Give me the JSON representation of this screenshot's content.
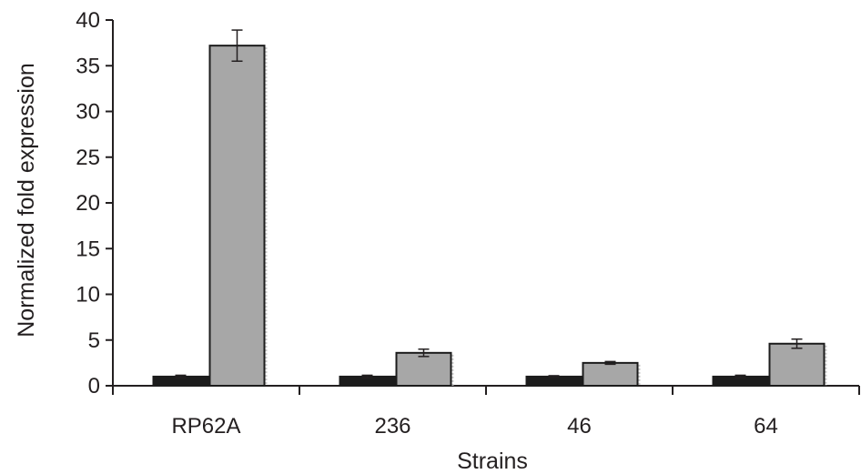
{
  "chart_data": {
    "type": "bar",
    "title": "",
    "xlabel": "Strains",
    "ylabel": "Normalized fold expression",
    "categories": [
      "RP62A",
      "236",
      "46",
      "64"
    ],
    "ylim": [
      0,
      40
    ],
    "yticks": [
      0,
      5,
      10,
      15,
      20,
      25,
      30,
      35,
      40
    ],
    "grid": false,
    "legend": "none",
    "series": [
      {
        "values": [
          1.0,
          1.0,
          1.0,
          1.0
        ],
        "errors": [
          0.15,
          0.15,
          0.1,
          0.15
        ],
        "color": "#1c1c1c"
      },
      {
        "values": [
          37.2,
          3.6,
          2.5,
          4.6
        ],
        "errors": [
          1.7,
          0.4,
          0.15,
          0.5
        ],
        "color": "#a7a7a7"
      }
    ]
  }
}
